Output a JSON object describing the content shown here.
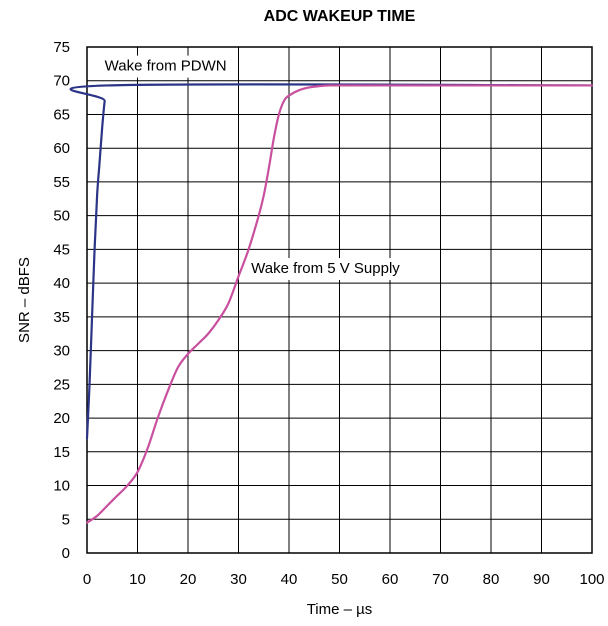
{
  "chart_data": {
    "type": "line",
    "title": "ADC WAKEUP TIME",
    "xlabel": "Time – µs",
    "ylabel": "SNR – dBFS",
    "xlim": [
      0,
      100
    ],
    "ylim": [
      0,
      75
    ],
    "xticks": [
      0,
      10,
      20,
      30,
      40,
      50,
      60,
      70,
      80,
      90,
      100
    ],
    "yticks": [
      0,
      5,
      10,
      15,
      20,
      25,
      30,
      35,
      40,
      45,
      50,
      55,
      60,
      65,
      70,
      75
    ],
    "grid": true,
    "series": [
      {
        "name": "Wake from PDWN",
        "color": "#2b3486",
        "x": [
          0,
          0.5,
          1,
          1.5,
          2,
          2.5,
          3,
          3.5,
          4,
          100
        ],
        "y": [
          17,
          25,
          35,
          45,
          53,
          58,
          63,
          67,
          69.3,
          69.3
        ]
      },
      {
        "name": "Wake from 5 V Supply",
        "color": "#c8509f",
        "x": [
          0,
          2,
          4,
          6,
          8,
          10,
          12,
          14,
          16,
          18,
          20,
          22,
          24,
          26,
          28,
          30,
          32,
          34,
          35,
          36,
          37,
          38,
          39,
          40,
          42,
          44,
          46,
          48,
          50,
          60,
          70,
          80,
          90,
          100
        ],
        "y": [
          4.5,
          5.5,
          7,
          8.5,
          10,
          12,
          15.5,
          20,
          24,
          27.5,
          29.5,
          31,
          32.5,
          34.5,
          37,
          41,
          45,
          50,
          53,
          57,
          61.5,
          65,
          67,
          67.8,
          68.6,
          69,
          69.2,
          69.3,
          69.3,
          69.3,
          69.3,
          69.3,
          69.3,
          69.3
        ]
      }
    ],
    "annotations": [
      {
        "text": "Wake from PDWN",
        "x": 3.5,
        "y": 71.5
      },
      {
        "text": "Wake from 5 V Supply",
        "x": 32.5,
        "y": 41.5
      }
    ]
  }
}
